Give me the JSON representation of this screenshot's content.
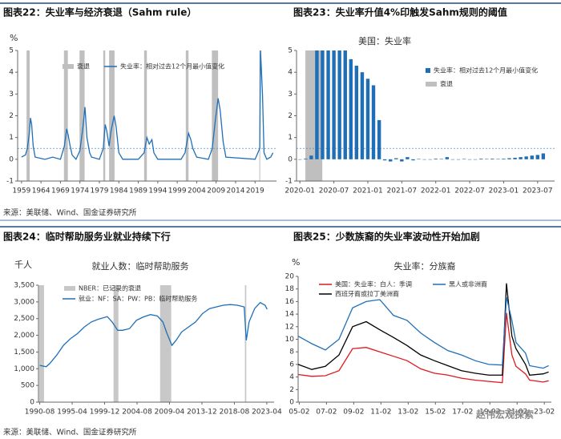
{
  "chart_data": [
    {
      "type": "line",
      "heading": "图表22：失业率与经济衰退（Sahm rule）",
      "unit": "%",
      "x": [
        1959,
        1960,
        1960.5,
        1961,
        1961.3,
        1961.6,
        1962,
        1962.5,
        1965,
        1967,
        1969,
        1970,
        1970.6,
        1971,
        1971.5,
        1972,
        1973,
        1974,
        1974.8,
        1975.3,
        1975.8,
        1976.5,
        1977,
        1979,
        1980,
        1980.5,
        1980.9,
        1981.5,
        1982,
        1982.8,
        1983.3,
        1984,
        1985,
        1989,
        1990.5,
        1991.2,
        1991.8,
        1992.5,
        1993,
        1994,
        2000,
        2001,
        2001.9,
        2002.5,
        2003,
        2004,
        2007,
        2008,
        2008.8,
        2009.5,
        2010,
        2010.8,
        2011.5,
        2019,
        2020.2,
        2020.4,
        2020.9,
        2021.3,
        2022,
        2023,
        2023.6
      ],
      "series": [
        {
          "name": "失业率：相对过去12个月最小值变化",
          "color": "#1f6fb8",
          "values": [
            0.1,
            0.2,
            0.5,
            1.2,
            1.9,
            1.6,
            0.6,
            0.1,
            0,
            0.1,
            0,
            0.6,
            1.4,
            1.1,
            0.6,
            0.2,
            0,
            0.4,
            1.5,
            2.4,
            1.0,
            0.3,
            0.1,
            0,
            0.5,
            1.6,
            1.3,
            0.6,
            1.3,
            2.0,
            1.5,
            0.3,
            0,
            0,
            0.3,
            1.0,
            0.7,
            0.9,
            0.3,
            0,
            0,
            0.3,
            1.2,
            0.9,
            0.5,
            0.1,
            0,
            0.5,
            1.8,
            2.8,
            2.3,
            0.8,
            0.1,
            0,
            0.5,
            5,
            3.0,
            0.3,
            0,
            0.1,
            0.3
          ]
        }
      ],
      "recession_label": "衰退",
      "recession_color": "#bfbfbf",
      "recessions": [
        [
          1960.3,
          1961.1
        ],
        [
          1969.9,
          1970.9
        ],
        [
          1973.9,
          1975.2
        ],
        [
          1980.0,
          1980.5
        ],
        [
          1981.5,
          1982.9
        ],
        [
          1990.5,
          1991.2
        ],
        [
          2001.2,
          2001.9
        ],
        [
          2007.9,
          2009.5
        ],
        [
          2020.1,
          2020.3
        ]
      ],
      "threshold": 0.5,
      "xlim": [
        1958,
        2024.5
      ],
      "xticks": [
        1959,
        1964,
        1969,
        1974,
        1979,
        1984,
        1989,
        1994,
        1999,
        2004,
        2009,
        2014,
        2019
      ],
      "ylim": [
        -1,
        5
      ],
      "yticks": [
        -1,
        0,
        1,
        2,
        3,
        4,
        5
      ]
    },
    {
      "type": "bar",
      "heading": "图表23：失业率升值4%印触发Sahm规则的阈值",
      "title": "美国：失业率",
      "x": [
        2020.0,
        2020.083,
        2020.167,
        2020.25,
        2020.333,
        2020.417,
        2020.5,
        2020.583,
        2020.667,
        2020.75,
        2020.833,
        2020.917,
        2021.0,
        2021.083,
        2021.167,
        2021.25,
        2021.333,
        2021.417,
        2021.5,
        2021.583,
        2021.667,
        2021.75,
        2021.833,
        2021.917,
        2022.0,
        2022.083,
        2022.167,
        2022.25,
        2022.333,
        2022.417,
        2022.5,
        2022.583,
        2022.667,
        2022.75,
        2022.833,
        2022.917,
        2023.0,
        2023.083,
        2023.167,
        2023.25,
        2023.333,
        2023.417,
        2023.5,
        2023.583
      ],
      "series": [
        {
          "name": "失业率：相对过去12个月最小值变化",
          "color": "#1f6fb8",
          "values": [
            0,
            0.03,
            0.17,
            5,
            5,
            5,
            5,
            5,
            5,
            4.6,
            4.3,
            4.0,
            3.7,
            3.4,
            1.8,
            -0.05,
            -0.1,
            0.05,
            -0.1,
            0.1,
            -0.05,
            0.02,
            0,
            0,
            0.03,
            0.02,
            0.1,
            0,
            0,
            0.02,
            0,
            0,
            0.03,
            0.02,
            0.03,
            0.02,
            0.03,
            0.05,
            0.07,
            0.1,
            0.13,
            0.17,
            0.2,
            0.27
          ]
        }
      ],
      "recession_label": "衰退",
      "recession_color": "#bfbfbf",
      "recessions": [
        [
          2020.08,
          2020.33
        ]
      ],
      "threshold": 0.5,
      "xlim": [
        2019.95,
        2023.75
      ],
      "xticks": [
        {
          "value": 2020,
          "label": "2020-01"
        },
        {
          "value": 2020.5,
          "label": "2020-07"
        },
        {
          "value": 2021,
          "label": "2021-01"
        },
        {
          "value": 2021.5,
          "label": "2021-07"
        },
        {
          "value": 2022,
          "label": "2022-01"
        },
        {
          "value": 2022.5,
          "label": "2022-07"
        },
        {
          "value": 2023,
          "label": "2023-01"
        },
        {
          "value": 2023.5,
          "label": "2023-07"
        }
      ],
      "ylim": [
        -1,
        5
      ],
      "yticks": [
        -1,
        0,
        1,
        2,
        3,
        4,
        5
      ]
    },
    {
      "type": "line",
      "heading": "图表24：临时帮助服务业就业持续下行",
      "title": "就业人数：临时帮助服务",
      "unit": "千人",
      "x": [
        1990.6,
        1991.5,
        1992,
        1993,
        1994,
        1995,
        1996,
        1997,
        1998,
        1999,
        2000.3,
        2001,
        2001.8,
        2002.5,
        2003.5,
        2004.5,
        2005.5,
        2006.5,
        2007.5,
        2008.3,
        2008.9,
        2009.6,
        2010.2,
        2011,
        2012,
        2013,
        2014,
        2015,
        2016,
        2017,
        2018,
        2019,
        2020,
        2020.3,
        2020.7,
        2021.5,
        2022.3,
        2023,
        2023.3
      ],
      "series": [
        {
          "name": "就业：NF：SA：PW：PB：临时帮助服务",
          "color": "#1f6fb8",
          "values": [
            1100,
            1060,
            1150,
            1400,
            1700,
            1900,
            2050,
            2250,
            2400,
            2480,
            2560,
            2400,
            2150,
            2150,
            2200,
            2450,
            2550,
            2620,
            2580,
            2400,
            2050,
            1700,
            1850,
            2100,
            2250,
            2400,
            2650,
            2800,
            2850,
            2900,
            2920,
            2900,
            2850,
            1850,
            2400,
            2800,
            2980,
            2900,
            2780
          ]
        }
      ],
      "recession_label": "NBER：已记录的衰退",
      "recession_color": "#c8c8c8",
      "recessions": [
        [
          1990.5,
          1991.2
        ],
        [
          2001.2,
          2001.9
        ],
        [
          2007.9,
          2009.5
        ],
        [
          2020.1,
          2020.3
        ]
      ],
      "xlim": [
        1990.4,
        2024.3
      ],
      "xticks": [
        {
          "value": 1990.583,
          "label": "1990-08"
        },
        {
          "value": 1995.25,
          "label": "1995-04"
        },
        {
          "value": 1999.917,
          "label": "1999-12"
        },
        {
          "value": 2004.583,
          "label": "2004-08"
        },
        {
          "value": 2009.25,
          "label": "2009-04"
        },
        {
          "value": 2013.917,
          "label": "2013-12"
        },
        {
          "value": 2018.583,
          "label": "2018-08"
        },
        {
          "value": 2023.25,
          "label": "2023-04"
        }
      ],
      "ylim": [
        0,
        3500
      ],
      "yticks": [
        0,
        {
          "value": 500,
          "label": "500"
        },
        {
          "value": 1000,
          "label": "1,000"
        },
        {
          "value": 1500,
          "label": "1,500"
        },
        {
          "value": 2000,
          "label": "2,000"
        },
        {
          "value": 2500,
          "label": "2,500"
        },
        {
          "value": 3000,
          "label": "3,000"
        },
        {
          "value": 3500,
          "label": "3,500"
        }
      ]
    },
    {
      "type": "line",
      "heading": "图表25：少数族裔的失业率波动性开始加剧",
      "title": "失业率：分族裔",
      "unit": "%",
      "x": [
        2005,
        2006,
        2007,
        2008,
        2009,
        2010,
        2011,
        2012,
        2013,
        2014,
        2015,
        2016,
        2017,
        2018,
        2019,
        2020,
        2020.3,
        2020.7,
        2021,
        2021.7,
        2022,
        2023,
        2023.4
      ],
      "series": [
        {
          "name": "美国：失业率：白人：季调",
          "color": "#e0191e",
          "values": [
            4.4,
            4.1,
            4.2,
            5.0,
            8.5,
            8.7,
            8.0,
            7.3,
            6.6,
            5.3,
            4.6,
            4.3,
            3.8,
            3.5,
            3.3,
            3.1,
            14.2,
            7.5,
            5.7,
            4.5,
            3.5,
            3.2,
            3.4
          ]
        },
        {
          "name": "西班牙裔或拉丁美洲裔",
          "color": "#000000",
          "values": [
            6.0,
            5.2,
            5.7,
            7.5,
            12.0,
            12.8,
            11.5,
            10.3,
            9.0,
            7.5,
            6.6,
            5.8,
            5.0,
            4.6,
            4.3,
            4.3,
            18.9,
            10.5,
            8.5,
            6.0,
            4.3,
            4.5,
            4.8
          ]
        },
        {
          "name": "黑人或非洲裔",
          "color": "#1f6fb8",
          "values": [
            10.5,
            9.3,
            8.3,
            10.0,
            15.0,
            16.0,
            16.3,
            13.8,
            13.0,
            11.0,
            9.5,
            8.2,
            7.5,
            6.6,
            6.0,
            5.9,
            16.7,
            13.0,
            9.5,
            7.8,
            5.8,
            5.4,
            5.8
          ]
        }
      ],
      "xlim": [
        2005,
        2023.6
      ],
      "xticks": [
        {
          "value": 2005.083,
          "label": "05-02"
        },
        {
          "value": 2007.083,
          "label": "07-02"
        },
        {
          "value": 2009.083,
          "label": "09-02"
        },
        {
          "value": 2011.083,
          "label": "11-02"
        },
        {
          "value": 2013.083,
          "label": "13-02"
        },
        {
          "value": 2015.083,
          "label": "15-02"
        },
        {
          "value": 2017.083,
          "label": "17-02"
        },
        {
          "value": 2019.083,
          "label": "19-02"
        },
        {
          "value": 2021.083,
          "label": "21-02"
        },
        {
          "value": 2023.083,
          "label": "23-02"
        }
      ],
      "ylim": [
        0,
        20
      ],
      "yticks": [
        0,
        2,
        4,
        6,
        8,
        10,
        12,
        14,
        16,
        18,
        20
      ],
      "watermark": "赵伟宏观探索"
    }
  ],
  "sources": [
    "来源：美联储、Wind、国金证券研究所",
    "来源：美联储、Wind、国金证券研究所"
  ]
}
